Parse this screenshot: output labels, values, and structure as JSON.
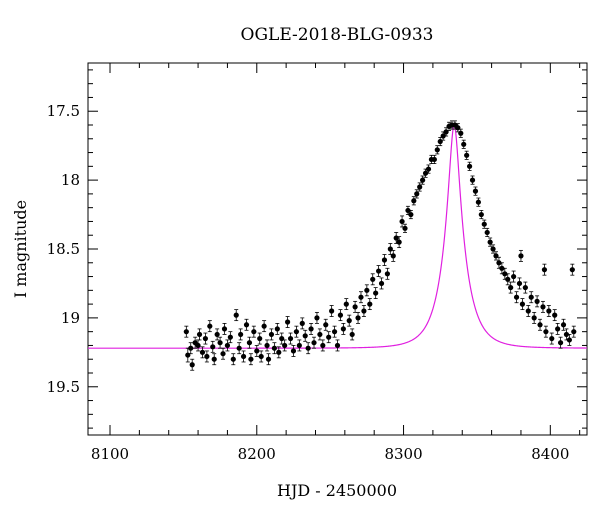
{
  "chart_data": {
    "type": "scatter",
    "title": "OGLE-2018-BLG-0933",
    "xlabel": "HJD - 2450000",
    "ylabel": "I magnitude",
    "xlim": [
      8085,
      8425
    ],
    "ylim": [
      19.85,
      17.15
    ],
    "y_inverted": true,
    "xticks": [
      8100,
      8200,
      8300,
      8400
    ],
    "xtick_labels": [
      "8100",
      "8200",
      "8300",
      "8400"
    ],
    "yticks": [
      17.5,
      18,
      18.5,
      19,
      19.5
    ],
    "ytick_labels": [
      "17.5",
      "18",
      "18.5",
      "19",
      "19.5"
    ],
    "grid": false,
    "legend": "none",
    "colors": {
      "points": "#000000",
      "model": "#e020e0"
    },
    "model": {
      "t0": 8334.5,
      "baseline_mag": 19.22,
      "peak_mag": 17.6,
      "tE": 14.0
    },
    "series": [
      {
        "type": "scatter",
        "error_bars": true,
        "points": [
          [
            8152,
            19.1,
            0.04
          ],
          [
            8153,
            19.27,
            0.05
          ],
          [
            8155,
            19.22,
            0.04
          ],
          [
            8156,
            19.34,
            0.04
          ],
          [
            8158,
            19.18,
            0.04
          ],
          [
            8160,
            19.2,
            0.04
          ],
          [
            8161,
            19.12,
            0.04
          ],
          [
            8163,
            19.25,
            0.04
          ],
          [
            8165,
            19.15,
            0.04
          ],
          [
            8166,
            19.28,
            0.04
          ],
          [
            8168,
            19.06,
            0.04
          ],
          [
            8170,
            19.21,
            0.04
          ],
          [
            8171,
            19.3,
            0.04
          ],
          [
            8173,
            19.12,
            0.04
          ],
          [
            8175,
            19.18,
            0.04
          ],
          [
            8177,
            19.26,
            0.04
          ],
          [
            8178,
            19.08,
            0.04
          ],
          [
            8180,
            19.2,
            0.04
          ],
          [
            8182,
            19.14,
            0.04
          ],
          [
            8184,
            19.3,
            0.04
          ],
          [
            8186,
            18.98,
            0.04
          ],
          [
            8188,
            19.22,
            0.04
          ],
          [
            8189,
            19.12,
            0.04
          ],
          [
            8191,
            19.28,
            0.04
          ],
          [
            8193,
            19.05,
            0.04
          ],
          [
            8195,
            19.18,
            0.04
          ],
          [
            8196,
            19.3,
            0.04
          ],
          [
            8198,
            19.1,
            0.04
          ],
          [
            8200,
            19.24,
            0.04
          ],
          [
            8202,
            19.15,
            0.04
          ],
          [
            8203,
            19.28,
            0.04
          ],
          [
            8205,
            19.06,
            0.04
          ],
          [
            8207,
            19.2,
            0.04
          ],
          [
            8208,
            19.3,
            0.04
          ],
          [
            8210,
            19.12,
            0.04
          ],
          [
            8212,
            19.22,
            0.04
          ],
          [
            8214,
            19.08,
            0.04
          ],
          [
            8215,
            19.25,
            0.04
          ],
          [
            8217,
            19.15,
            0.04
          ],
          [
            8219,
            19.2,
            0.04
          ],
          [
            8221,
            19.03,
            0.04
          ],
          [
            8223,
            19.15,
            0.04
          ],
          [
            8225,
            19.24,
            0.04
          ],
          [
            8227,
            19.1,
            0.04
          ],
          [
            8229,
            19.2,
            0.04
          ],
          [
            8231,
            19.04,
            0.04
          ],
          [
            8233,
            19.13,
            0.04
          ],
          [
            8235,
            19.22,
            0.04
          ],
          [
            8237,
            19.08,
            0.04
          ],
          [
            8239,
            19.18,
            0.04
          ],
          [
            8241,
            19.0,
            0.04
          ],
          [
            8243,
            19.12,
            0.04
          ],
          [
            8245,
            19.2,
            0.04
          ],
          [
            8247,
            19.05,
            0.04
          ],
          [
            8249,
            19.14,
            0.04
          ],
          [
            8251,
            18.95,
            0.04
          ],
          [
            8253,
            19.1,
            0.04
          ],
          [
            8255,
            19.2,
            0.04
          ],
          [
            8257,
            18.98,
            0.04
          ],
          [
            8259,
            19.08,
            0.04
          ],
          [
            8261,
            18.9,
            0.04
          ],
          [
            8263,
            19.02,
            0.04
          ],
          [
            8265,
            19.12,
            0.04
          ],
          [
            8267,
            18.92,
            0.04
          ],
          [
            8269,
            19.0,
            0.04
          ],
          [
            8271,
            18.85,
            0.04
          ],
          [
            8273,
            18.95,
            0.04
          ],
          [
            8275,
            18.8,
            0.04
          ],
          [
            8277,
            18.9,
            0.04
          ],
          [
            8279,
            18.72,
            0.04
          ],
          [
            8281,
            18.82,
            0.04
          ],
          [
            8283,
            18.66,
            0.04
          ],
          [
            8285,
            18.75,
            0.04
          ],
          [
            8287,
            18.58,
            0.04
          ],
          [
            8289,
            18.68,
            0.04
          ],
          [
            8291,
            18.5,
            0.04
          ],
          [
            8293,
            18.55,
            0.04
          ],
          [
            8295,
            18.42,
            0.04
          ],
          [
            8297,
            18.45,
            0.04
          ],
          [
            8299,
            18.3,
            0.04
          ],
          [
            8301,
            18.35,
            0.03
          ],
          [
            8303,
            18.22,
            0.03
          ],
          [
            8305,
            18.25,
            0.03
          ],
          [
            8307,
            18.15,
            0.03
          ],
          [
            8309,
            18.1,
            0.03
          ],
          [
            8311,
            18.05,
            0.03
          ],
          [
            8313,
            18.0,
            0.03
          ],
          [
            8315,
            17.95,
            0.03
          ],
          [
            8317,
            17.92,
            0.03
          ],
          [
            8319,
            17.85,
            0.03
          ],
          [
            8321,
            17.85,
            0.03
          ],
          [
            8323,
            17.78,
            0.03
          ],
          [
            8325,
            17.72,
            0.03
          ],
          [
            8327,
            17.68,
            0.03
          ],
          [
            8329,
            17.65,
            0.03
          ],
          [
            8331,
            17.61,
            0.03
          ],
          [
            8333,
            17.6,
            0.03
          ],
          [
            8335,
            17.6,
            0.03
          ],
          [
            8337,
            17.62,
            0.03
          ],
          [
            8339,
            17.66,
            0.03
          ],
          [
            8341,
            17.74,
            0.03
          ],
          [
            8343,
            17.82,
            0.03
          ],
          [
            8345,
            17.9,
            0.03
          ],
          [
            8347,
            18.0,
            0.03
          ],
          [
            8349,
            18.08,
            0.03
          ],
          [
            8351,
            18.16,
            0.03
          ],
          [
            8353,
            18.25,
            0.03
          ],
          [
            8355,
            18.32,
            0.03
          ],
          [
            8357,
            18.38,
            0.03
          ],
          [
            8359,
            18.45,
            0.03
          ],
          [
            8361,
            18.5,
            0.03
          ],
          [
            8363,
            18.55,
            0.03
          ],
          [
            8365,
            18.6,
            0.04
          ],
          [
            8367,
            18.64,
            0.04
          ],
          [
            8369,
            18.68,
            0.04
          ],
          [
            8371,
            18.72,
            0.04
          ],
          [
            8373,
            18.78,
            0.04
          ],
          [
            8375,
            18.7,
            0.04
          ],
          [
            8377,
            18.85,
            0.04
          ],
          [
            8379,
            18.75,
            0.04
          ],
          [
            8381,
            18.9,
            0.04
          ],
          [
            8383,
            18.78,
            0.04
          ],
          [
            8385,
            18.95,
            0.04
          ],
          [
            8387,
            18.85,
            0.04
          ],
          [
            8389,
            19.0,
            0.04
          ],
          [
            8391,
            18.88,
            0.04
          ],
          [
            8393,
            19.05,
            0.04
          ],
          [
            8395,
            18.92,
            0.04
          ],
          [
            8397,
            19.1,
            0.04
          ],
          [
            8399,
            18.95,
            0.04
          ],
          [
            8401,
            19.15,
            0.04
          ],
          [
            8403,
            18.98,
            0.04
          ],
          [
            8405,
            19.08,
            0.04
          ],
          [
            8407,
            19.18,
            0.04
          ],
          [
            8409,
            19.05,
            0.04
          ],
          [
            8411,
            19.12,
            0.04
          ],
          [
            8413,
            19.16,
            0.04
          ],
          [
            8415,
            18.65,
            0.04
          ],
          [
            8416,
            19.1,
            0.04
          ],
          [
            8380,
            18.55,
            0.04
          ],
          [
            8396,
            18.65,
            0.04
          ]
        ]
      }
    ]
  }
}
